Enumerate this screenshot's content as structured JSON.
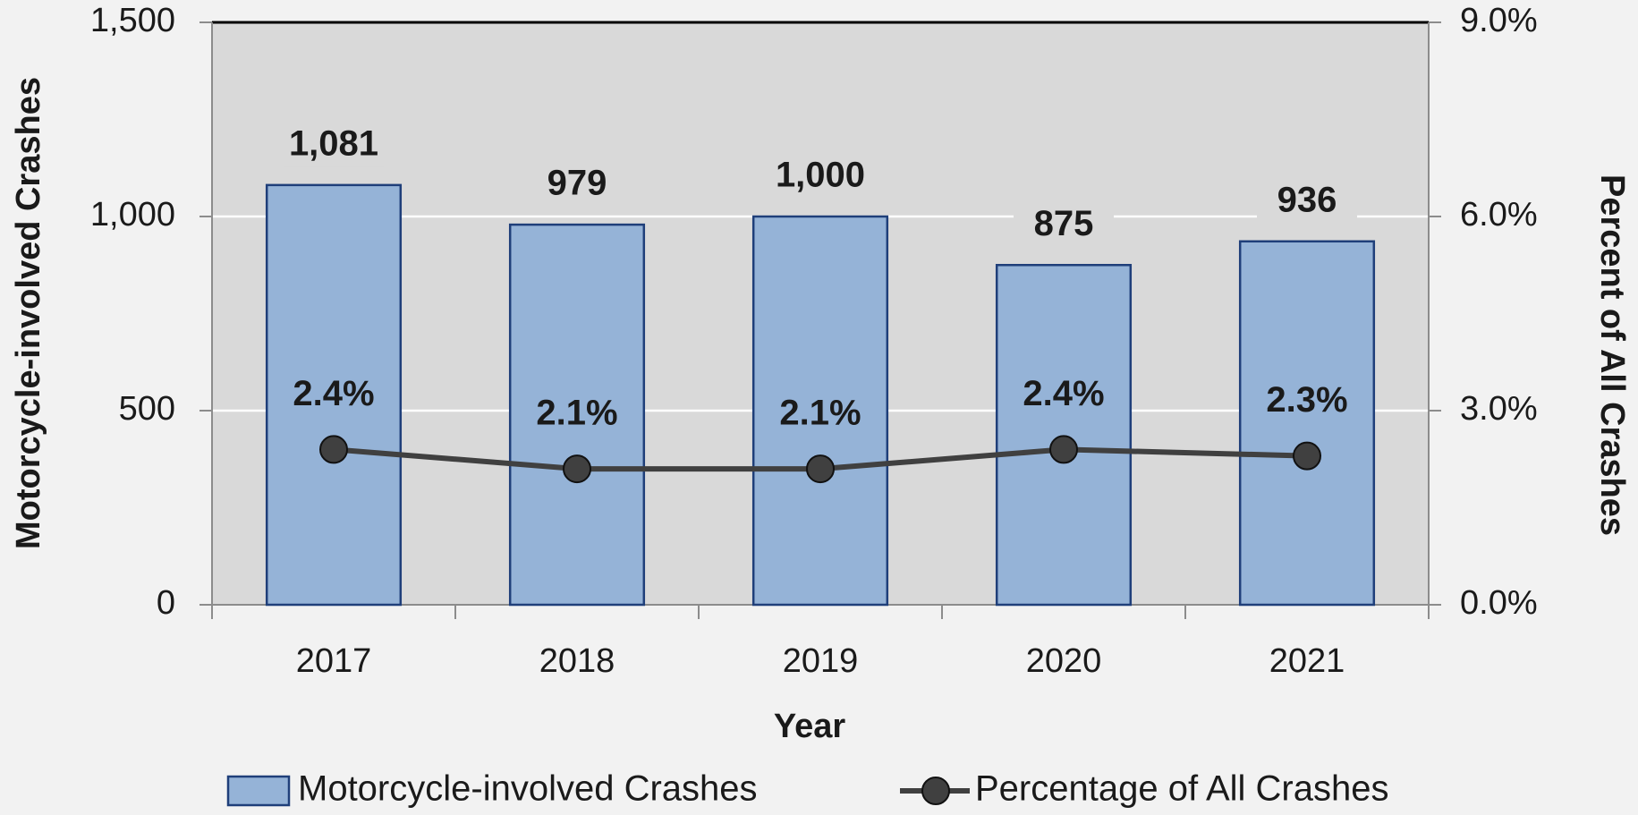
{
  "chart_data": {
    "type": "bar",
    "x_label": "Year",
    "y_label": "Motorcycle-involved Crashes",
    "y2_label": "Percent of All Crashes",
    "categories": [
      "2017",
      "2018",
      "2019",
      "2020",
      "2021"
    ],
    "series": [
      {
        "name": "Motorcycle-involved Crashes",
        "type": "bar",
        "color": "#95b3d7",
        "edge_color": "#1f3f7a",
        "values": [
          1081,
          979,
          1000,
          875,
          936
        ],
        "value_labels": [
          "1,081",
          "979",
          "1,000",
          "875",
          "936"
        ]
      },
      {
        "name": "Percentage of All Crashes",
        "type": "line",
        "axis": "y2",
        "color": "#404040",
        "values": [
          2.4,
          2.1,
          2.1,
          2.4,
          2.3
        ],
        "value_labels": [
          "2.4%",
          "2.1%",
          "2.1%",
          "2.4%",
          "2.3%"
        ]
      }
    ],
    "ylim": [
      0,
      1500
    ],
    "yticks": [
      0,
      500,
      {
        "value": 1000,
        "label": "1,000"
      },
      {
        "value": 1500,
        "label": "1,500"
      }
    ],
    "y2lim": [
      0,
      9
    ],
    "y2ticks": [
      {
        "value": 0,
        "label": "0.0%"
      },
      {
        "value": 3,
        "label": "3.0%"
      },
      {
        "value": 6,
        "label": "6.0%"
      },
      {
        "value": 9,
        "label": "9.0%"
      }
    ],
    "grid": true,
    "legend": "bottom"
  }
}
